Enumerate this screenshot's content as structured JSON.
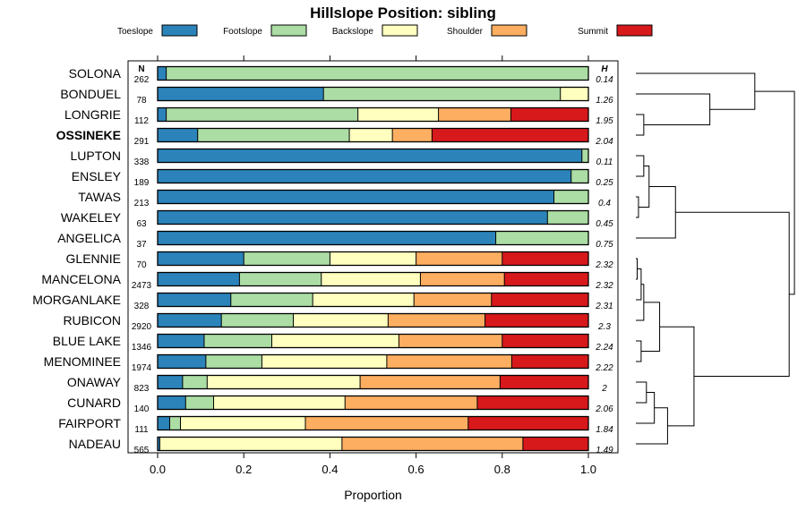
{
  "chart_data": {
    "type": "bar",
    "subtype": "stacked-horizontal-proportion",
    "title": "Hillslope Position: sibling",
    "xlabel": "Proportion",
    "ylabel": "",
    "xlim": [
      0,
      1
    ],
    "x_ticks": [
      "0.0",
      "0.2",
      "0.4",
      "0.6",
      "0.8",
      "1.0"
    ],
    "x_tick_values": [
      0,
      0.2,
      0.4,
      0.6,
      0.8,
      1.0
    ],
    "n_header": "N",
    "h_header": "H",
    "legend": [
      {
        "name": "Toeslope",
        "color": "#2B83BA"
      },
      {
        "name": "Footslope",
        "color": "#ABDDA4"
      },
      {
        "name": "Backslope",
        "color": "#FFFFBF"
      },
      {
        "name": "Shoulder",
        "color": "#FDAE61"
      },
      {
        "name": "Summit",
        "color": "#D7191C"
      }
    ],
    "rows": [
      {
        "name": "SOLONA",
        "bold": false,
        "n": "262",
        "h": "0.14",
        "values": [
          0.02,
          0.98,
          0,
          0,
          0
        ]
      },
      {
        "name": "BONDUEL",
        "bold": false,
        "n": "78",
        "h": "1.26",
        "values": [
          0.385,
          0.55,
          0.065,
          0,
          0
        ]
      },
      {
        "name": "LONGRIE",
        "bold": false,
        "n": "112",
        "h": "1.95",
        "values": [
          0.02,
          0.445,
          0.187,
          0.168,
          0.18
        ]
      },
      {
        "name": "OSSINEKE",
        "bold": true,
        "n": "291",
        "h": "2.04",
        "values": [
          0.093,
          0.352,
          0.1,
          0.092,
          0.363
        ]
      },
      {
        "name": "LUPTON",
        "bold": false,
        "n": "338",
        "h": "0.11",
        "values": [
          0.985,
          0.015,
          0,
          0,
          0
        ]
      },
      {
        "name": "ENSLEY",
        "bold": false,
        "n": "189",
        "h": "0.25",
        "values": [
          0.96,
          0.04,
          0,
          0,
          0
        ]
      },
      {
        "name": "TAWAS",
        "bold": false,
        "n": "213",
        "h": "0.4",
        "values": [
          0.92,
          0.08,
          0,
          0,
          0
        ]
      },
      {
        "name": "WAKELEY",
        "bold": false,
        "n": "63",
        "h": "0.45",
        "values": [
          0.905,
          0.095,
          0,
          0,
          0
        ]
      },
      {
        "name": "ANGELICA",
        "bold": false,
        "n": "37",
        "h": "0.75",
        "values": [
          0.785,
          0.215,
          0,
          0,
          0
        ]
      },
      {
        "name": "GLENNIE",
        "bold": false,
        "n": "70",
        "h": "2.32",
        "values": [
          0.2,
          0.2,
          0.2,
          0.2,
          0.2
        ]
      },
      {
        "name": "MANCELONA",
        "bold": false,
        "n": "2473",
        "h": "2.32",
        "values": [
          0.19,
          0.19,
          0.23,
          0.195,
          0.195
        ]
      },
      {
        "name": "MORGANLAKE",
        "bold": false,
        "n": "328",
        "h": "2.31",
        "values": [
          0.17,
          0.19,
          0.235,
          0.18,
          0.225
        ]
      },
      {
        "name": "RUBICON",
        "bold": false,
        "n": "2920",
        "h": "2.3",
        "values": [
          0.148,
          0.167,
          0.22,
          0.225,
          0.24
        ]
      },
      {
        "name": "BLUE LAKE",
        "bold": false,
        "n": "1346",
        "h": "2.24",
        "values": [
          0.108,
          0.157,
          0.295,
          0.24,
          0.2
        ]
      },
      {
        "name": "MENOMINEE",
        "bold": false,
        "n": "1974",
        "h": "2.22",
        "values": [
          0.112,
          0.13,
          0.29,
          0.29,
          0.178
        ]
      },
      {
        "name": "ONAWAY",
        "bold": false,
        "n": "823",
        "h": "2",
        "values": [
          0.058,
          0.057,
          0.355,
          0.325,
          0.205
        ]
      },
      {
        "name": "CUNARD",
        "bold": false,
        "n": "140",
        "h": "2.06",
        "values": [
          0.065,
          0.065,
          0.305,
          0.307,
          0.258
        ]
      },
      {
        "name": "FAIRPORT",
        "bold": false,
        "n": "111",
        "h": "1.84",
        "values": [
          0.028,
          0.025,
          0.29,
          0.378,
          0.279
        ]
      },
      {
        "name": "NADEAU",
        "bold": false,
        "n": "565",
        "h": "1.49",
        "values": [
          0.005,
          0,
          0.423,
          0.42,
          0.152
        ]
      }
    ],
    "dendrogram": {
      "leaves": [
        "SOLONA",
        "BONDUEL",
        "LONGRIE",
        "OSSINEKE",
        "LUPTON",
        "ENSLEY",
        "TAWAS",
        "WAKELEY",
        "ANGELICA",
        "GLENNIE",
        "MANCELONA",
        "MORGANLAKE",
        "RUBICON",
        "BLUE LAKE",
        "MENOMINEE",
        "ONAWAY",
        "CUNARD",
        "FAIRPORT",
        "NADEAU"
      ],
      "merges": [
        {
          "a": "L2",
          "b": "L3",
          "height": 0.03
        },
        {
          "a": "L1",
          "b": "C0",
          "height": 0.28
        },
        {
          "a": "L0",
          "b": "C1",
          "height": 0.45
        },
        {
          "a": "L4",
          "b": "L5",
          "height": 0.03
        },
        {
          "a": "L6",
          "b": "L7",
          "height": 0.01
        },
        {
          "a": "C3",
          "b": "C4",
          "height": 0.05
        },
        {
          "a": "C5",
          "b": "L8",
          "height": 0.15
        },
        {
          "a": "L9",
          "b": "L10",
          "height": 0.005
        },
        {
          "a": "C7",
          "b": "L11",
          "height": 0.02
        },
        {
          "a": "C8",
          "b": "L12",
          "height": 0.03
        },
        {
          "a": "L13",
          "b": "L14",
          "height": 0.02
        },
        {
          "a": "C9",
          "b": "C10",
          "height": 0.09
        },
        {
          "a": "L15",
          "b": "L16",
          "height": 0.04
        },
        {
          "a": "C12",
          "b": "L17",
          "height": 0.07
        },
        {
          "a": "C13",
          "b": "L18",
          "height": 0.12
        },
        {
          "a": "C11",
          "b": "C14",
          "height": 0.22
        },
        {
          "a": "C6",
          "b": "C15",
          "height": 0.58
        },
        {
          "a": "C2",
          "b": "C16",
          "height": 0.6
        }
      ],
      "max_height": 0.62
    }
  }
}
